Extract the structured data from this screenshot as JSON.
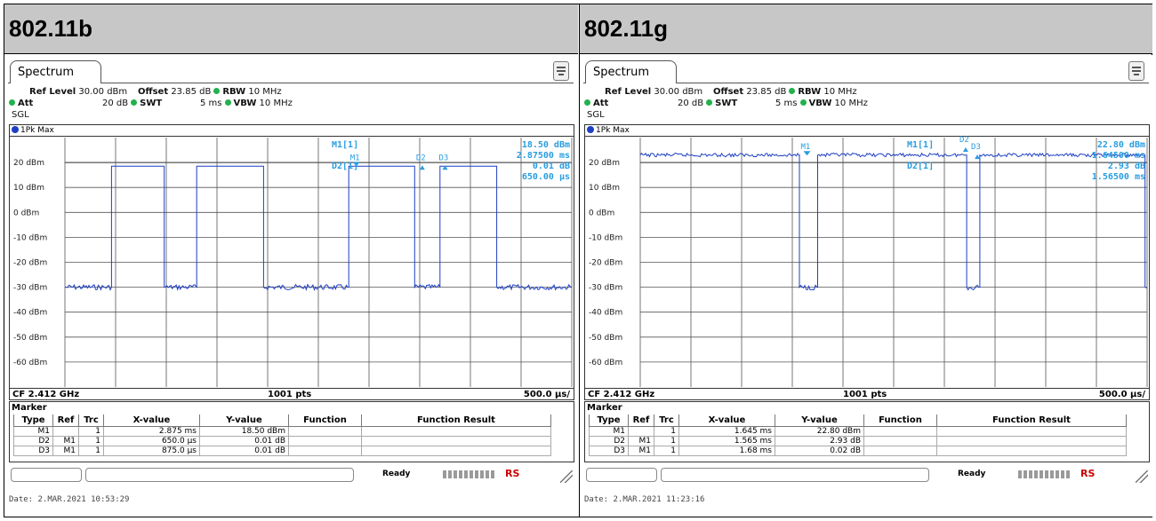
{
  "panels": [
    {
      "title": "802.11b",
      "tab": "Spectrum",
      "params": {
        "ref_level_label": "Ref Level",
        "ref_level": "30.00 dBm",
        "offset_label": "Offset",
        "offset": "23.85 dB",
        "rbw_label": "RBW",
        "rbw": "10 MHz",
        "att_label": "Att",
        "att": "20 dB",
        "swt_label": "SWT",
        "swt": "5 ms",
        "vbw_label": "VBW",
        "vbw": "10 MHz",
        "sgl": "SGL"
      },
      "trace_label": "1Pk Max",
      "marker_readout": [
        "M1[1]",
        "18.50 dBm",
        "2.87500 ms",
        "D2[1]",
        "0.01 dB",
        "650.00 µs"
      ],
      "cf": "CF 2.412 GHz",
      "pts": "1001 pts",
      "span": "500.0 µs/",
      "marker_title": "Marker",
      "table_headers": [
        "Type",
        "Ref",
        "Trc",
        "X-value",
        "Y-value",
        "Function",
        "Function Result"
      ],
      "table_rows": [
        [
          "M1",
          "",
          "1",
          "2.875 ms",
          "18.50 dBm",
          "",
          ""
        ],
        [
          "D2",
          "M1",
          "1",
          "650.0 µs",
          "0.01 dB",
          "",
          ""
        ],
        [
          "D3",
          "M1",
          "1",
          "875.0 µs",
          "0.01 dB",
          "",
          ""
        ]
      ],
      "status": "Ready",
      "brand": "RS",
      "date": "Date: 2.MAR.2021  10:53:29",
      "chart_data": {
        "type": "line",
        "xlabel": "",
        "ylabel": "",
        "xlim": [
          0,
          5
        ],
        "ylim": [
          -70,
          30
        ],
        "ytick_labels": [
          "20 dBm",
          "10 dBm",
          "0 dBm",
          "-10 dBm",
          "-20 dBm",
          "-30 dBm",
          "-40 dBm",
          "-50 dBm",
          "-60 dBm"
        ],
        "yticks": [
          20,
          10,
          0,
          -10,
          -20,
          -30,
          -40,
          -50,
          -60
        ],
        "grid": true,
        "display_line_dbm": 20,
        "series": [
          {
            "x": [
              0,
              0.46,
              0.46,
              0.98,
              0.98,
              1.3,
              1.3,
              1.96,
              1.96,
              2.8,
              2.8,
              3.45,
              3.45,
              3.7,
              3.7,
              4.26,
              4.26,
              5
            ],
            "y": [
              -30,
              -30,
              18.5,
              18.5,
              -30,
              -30,
              18.5,
              18.5,
              -30,
              -30,
              18.5,
              18.5,
              -30,
              -30,
              18.5,
              18.5,
              -30,
              -30
            ],
            "noisy_below_dbm": -25
          }
        ],
        "markers": [
          {
            "label": "M1",
            "x": 2.875,
            "y": 18.5,
            "kind": "triangle-down"
          },
          {
            "label": "D2",
            "x": 3.525,
            "y": 18.51,
            "kind": "triangle-up"
          },
          {
            "label": "D3",
            "x": 3.75,
            "y": 18.51,
            "kind": "triangle-up"
          }
        ]
      }
    },
    {
      "title": "802.11g",
      "tab": "Spectrum",
      "params": {
        "ref_level_label": "Ref Level",
        "ref_level": "30.00 dBm",
        "offset_label": "Offset",
        "offset": "23.85 dB",
        "rbw_label": "RBW",
        "rbw": "10 MHz",
        "att_label": "Att",
        "att": "20 dB",
        "swt_label": "SWT",
        "swt": "5 ms",
        "vbw_label": "VBW",
        "vbw": "10 MHz",
        "sgl": "SGL"
      },
      "trace_label": "1Pk Max",
      "marker_readout": [
        "M1[1]",
        "22.80 dBm",
        "1.64500 ms",
        "D2[1]",
        "2.93 dB",
        "1.56500 ms"
      ],
      "cf": "CF 2.412 GHz",
      "pts": "1001 pts",
      "span": "500.0 µs/",
      "marker_title": "Marker",
      "table_headers": [
        "Type",
        "Ref",
        "Trc",
        "X-value",
        "Y-value",
        "Function",
        "Function Result"
      ],
      "table_rows": [
        [
          "M1",
          "",
          "1",
          "1.645 ms",
          "22.80 dBm",
          "",
          ""
        ],
        [
          "D2",
          "M1",
          "1",
          "1.565 ms",
          "2.93 dB",
          "",
          ""
        ],
        [
          "D3",
          "M1",
          "1",
          "1.68 ms",
          "0.02 dB",
          "",
          ""
        ]
      ],
      "status": "Ready",
      "brand": "RS",
      "date": "Date: 2.MAR.2021  11:23:16",
      "chart_data": {
        "type": "line",
        "xlabel": "",
        "ylabel": "",
        "xlim": [
          0,
          5
        ],
        "ylim": [
          -70,
          30
        ],
        "ytick_labels": [
          "20 dBm",
          "10 dBm",
          "0 dBm",
          "-10 dBm",
          "-20 dBm",
          "-30 dBm",
          "-40 dBm",
          "-50 dBm",
          "-60 dBm"
        ],
        "yticks": [
          20,
          10,
          0,
          -10,
          -20,
          -30,
          -40,
          -50,
          -60
        ],
        "grid": true,
        "display_line_dbm": 20,
        "series": [
          {
            "x": [
              0,
              1.57,
              1.57,
              1.75,
              1.75,
              3.22,
              3.22,
              3.35,
              3.35,
              4.98,
              4.98,
              5
            ],
            "y": [
              23,
              23,
              -30,
              -30,
              23,
              23,
              -30,
              -30,
              23,
              23,
              -30,
              -30
            ],
            "noisy_below_dbm": -25,
            "noisy_above_dbm": 20
          }
        ],
        "markers": [
          {
            "label": "M1",
            "x": 1.645,
            "y": 22.8,
            "kind": "triangle-down"
          },
          {
            "label": "D2",
            "x": 3.21,
            "y": 25.73,
            "kind": "triangle-up"
          },
          {
            "label": "D3",
            "x": 3.325,
            "y": 22.82,
            "kind": "triangle-up"
          }
        ]
      }
    }
  ],
  "colors": {
    "trace": "#1d3fc4",
    "readout": "#2a9de0",
    "grid": "#555555",
    "status_led": "#22b14c"
  }
}
